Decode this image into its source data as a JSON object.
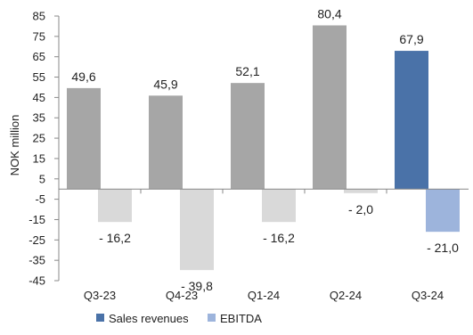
{
  "chart_data": {
    "type": "bar",
    "title": "",
    "xlabel": "",
    "ylabel": "NOK million",
    "ylim": [
      -45,
      85
    ],
    "yticks": [
      85,
      75,
      65,
      55,
      45,
      35,
      25,
      15,
      5,
      -5,
      -15,
      -25,
      -35,
      -45
    ],
    "ytick_labels": [
      "85",
      "75",
      "65",
      "55",
      "45",
      "35",
      "25",
      "15",
      "5",
      "-5",
      "-15",
      "-25",
      "-35",
      "-45"
    ],
    "categories": [
      "Q3-23",
      "Q4-23",
      "Q1-24",
      "Q2-24",
      "Q3-24"
    ],
    "series": [
      {
        "name": "Sales revenues",
        "values": [
          49.6,
          45.9,
          52.1,
          80.4,
          67.9
        ],
        "labels": [
          "49,6",
          "45,9",
          "52,1",
          "80,4",
          "67,9"
        ],
        "colors": [
          "#a6a6a6",
          "#a6a6a6",
          "#a6a6a6",
          "#a6a6a6",
          "#4a72a8"
        ]
      },
      {
        "name": "EBITDA",
        "values": [
          -16.2,
          -39.8,
          -16.2,
          -2.0,
          -21.0
        ],
        "labels": [
          "- 16,2",
          "- 39,8",
          "- 16,2",
          "- 2,0",
          "- 21,0"
        ],
        "colors": [
          "#d9d9d9",
          "#d9d9d9",
          "#d9d9d9",
          "#d9d9d9",
          "#9db4dc"
        ]
      }
    ],
    "legend": {
      "placement": "bottom",
      "items": [
        {
          "label": "Sales revenues",
          "color": "#4a72a8"
        },
        {
          "label": "EBITDA",
          "color": "#9db4dc"
        }
      ]
    },
    "grid": false
  }
}
